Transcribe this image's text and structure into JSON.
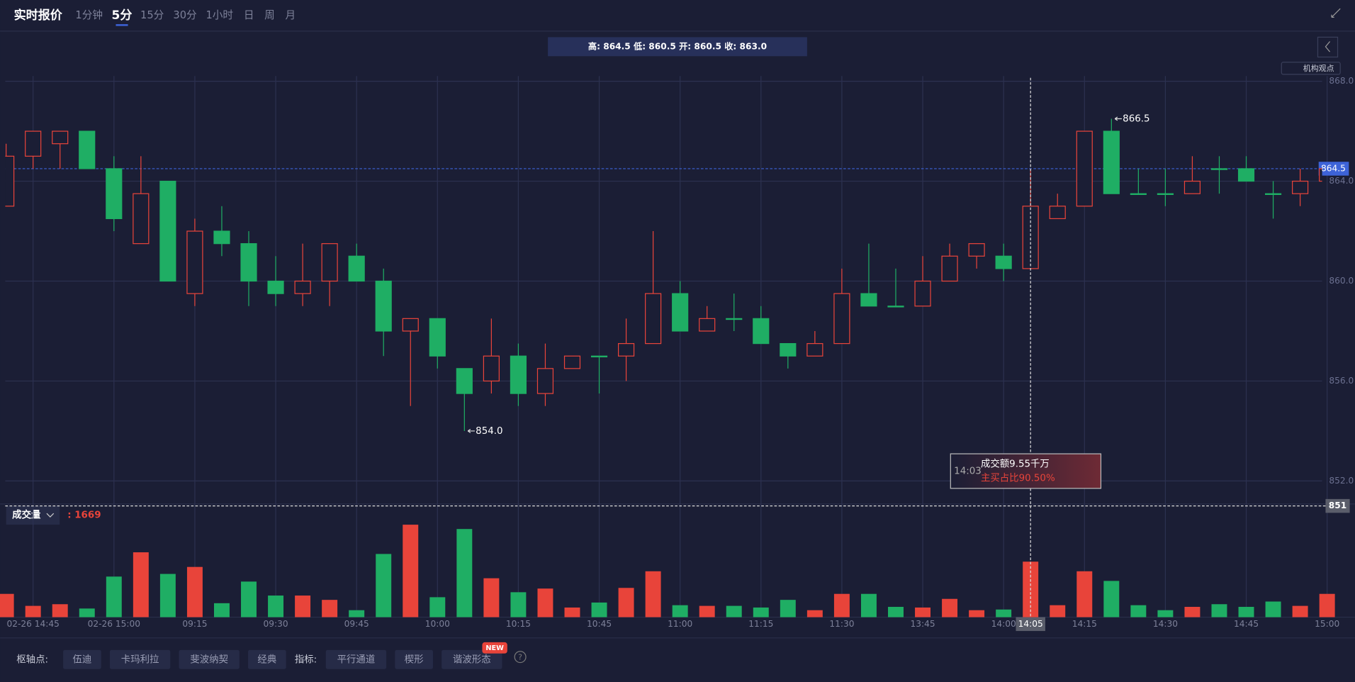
{
  "header": {
    "title": "实时报价",
    "tabs": [
      "1分钟",
      "5分",
      "15分",
      "30分",
      "1小时",
      "日",
      "周",
      "月"
    ]
  },
  "info_bar": "高: 864.5 低: 860.5 开: 860.5 收: 863.0",
  "view_button": "机构观点",
  "tooltip": {
    "time": "14:03",
    "lines": [
      "成交额9.55千万",
      "主买占比90.50%"
    ]
  },
  "toolbar": {
    "pivot_label": "枢轴点:",
    "pivot_buttons": [
      "伍迪",
      "卡玛利拉",
      "斐波纳契",
      "经典"
    ],
    "indicator_label": "指标:",
    "indicator_buttons": [
      "平行通道",
      "楔形",
      "谐波形态"
    ],
    "badge": "NEW",
    "help": "?"
  },
  "chart_data": {
    "type": "candlestick",
    "categories": [
      null,
      "02-26 14:45",
      null,
      null,
      "02-26 15:00",
      null,
      null,
      "09:15",
      null,
      null,
      "09:30",
      null,
      null,
      "09:45",
      null,
      null,
      "10:00",
      null,
      null,
      "10:15",
      null,
      null,
      "10:45",
      null,
      null,
      "11:00",
      null,
      null,
      "11:15",
      null,
      null,
      "11:30",
      null,
      null,
      "13:45",
      null,
      null,
      "14:00",
      "14:05",
      null,
      "14:15",
      null,
      null,
      "14:30",
      null,
      null,
      "14:45",
      null,
      null,
      "15:00"
    ],
    "open": [
      863,
      865,
      865.5,
      866,
      864.5,
      861.5,
      864,
      859.5,
      862,
      861.5,
      860,
      859.5,
      860,
      861,
      860,
      858,
      858.5,
      856.5,
      856,
      857,
      855.5,
      856.5,
      857,
      857,
      857.5,
      859.5,
      858,
      858.5,
      858.5,
      857.5,
      857,
      857.5,
      859.5,
      859,
      859,
      860,
      861,
      861,
      860.5,
      862.5,
      863,
      866,
      863.5,
      863.5,
      863.5,
      864.5,
      864.5,
      863.5,
      863.5,
      864
    ],
    "high": [
      865.5,
      866,
      866,
      866,
      865,
      865,
      864,
      862.5,
      863,
      862,
      861,
      861.5,
      861.5,
      861.5,
      860.5,
      858.5,
      858.5,
      856.5,
      858.5,
      857.5,
      857.5,
      857,
      857,
      858.5,
      862,
      860,
      859,
      859.5,
      859,
      857.5,
      858,
      860.5,
      861.5,
      860.5,
      861,
      861.5,
      861.5,
      861.5,
      864.5,
      863.5,
      866,
      866.5,
      864.5,
      864.5,
      865,
      865,
      865,
      864,
      864.5,
      864.5
    ],
    "low": [
      863,
      864.5,
      864.5,
      864.5,
      862,
      861.5,
      860,
      859,
      861,
      859,
      859,
      859,
      859,
      860,
      857,
      855,
      856.5,
      854,
      855.5,
      855,
      855,
      856.5,
      855.5,
      856,
      857.5,
      858,
      858,
      858,
      857.5,
      856.5,
      857,
      857.5,
      859,
      859,
      859,
      860,
      860.5,
      860,
      860.5,
      862.5,
      863,
      863.5,
      863.5,
      863,
      863.5,
      863.5,
      864,
      862.5,
      863,
      863
    ],
    "close": [
      865,
      866,
      866,
      864.5,
      862.5,
      863.5,
      860,
      862,
      861.5,
      860,
      859.5,
      860,
      861.5,
      860,
      858,
      858.5,
      857,
      855.5,
      857,
      855.5,
      856.5,
      857,
      857,
      857.5,
      859.5,
      858,
      858.5,
      858.5,
      857.5,
      857,
      857.5,
      859.5,
      859,
      859,
      860,
      861,
      861.5,
      860.5,
      863,
      863,
      866,
      863.5,
      863.5,
      863.5,
      864,
      864.5,
      864,
      863.5,
      864,
      864.5
    ],
    "volume": [
      700,
      340,
      390,
      260,
      1220,
      1950,
      1300,
      1510,
      420,
      1070,
      650,
      650,
      520,
      210,
      1900,
      2780,
      600,
      2650,
      1170,
      750,
      860,
      290,
      440,
      880,
      1380,
      360,
      340,
      340,
      290,
      520,
      210,
      700,
      700,
      310,
      290,
      550,
      210,
      230,
      1669,
      360,
      1380,
      1090,
      360,
      210,
      310,
      390,
      310,
      470,
      340,
      700
    ],
    "up_color": "#e8443a",
    "down_color": "#1fae64",
    "ylim": [
      851,
      868
    ],
    "yticks": [
      {
        "value": 868,
        "label": "868.0"
      },
      {
        "value": 864,
        "label": "864.0"
      },
      {
        "value": 860,
        "label": "860.0"
      },
      {
        "value": 856,
        "label": "856.0"
      },
      {
        "value": 852,
        "label": "852.0"
      }
    ],
    "grid": true,
    "last_price": 864.5,
    "crosshair_price": 851,
    "high_marker": 866.5,
    "low_marker": {
      "value": 854,
      "label": "854.0"
    },
    "volume_title": "成交量",
    "volume_value": {
      "value": 1669,
      "label": ": 1669"
    }
  }
}
